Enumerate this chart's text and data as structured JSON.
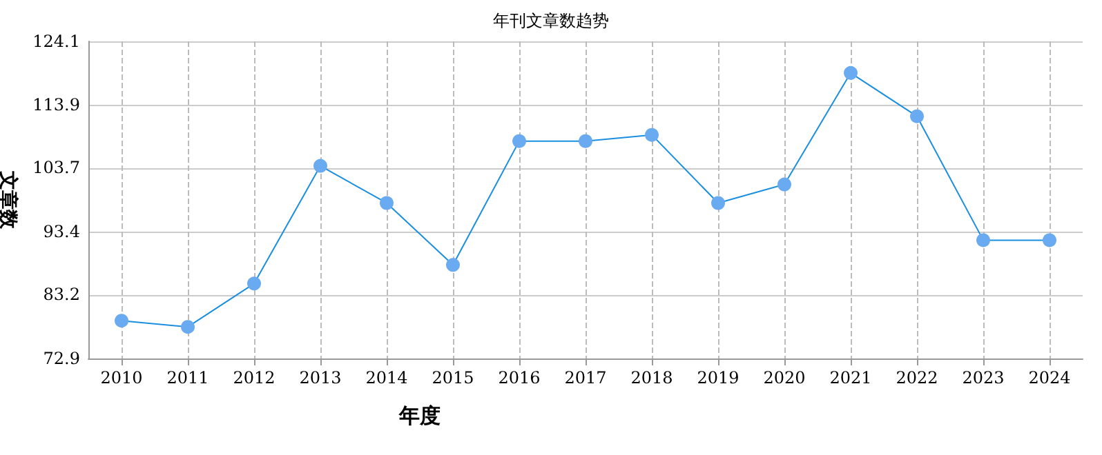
{
  "chart_data": {
    "type": "line",
    "title": "年刊文章数趋势",
    "xlabel": "年度",
    "ylabel": "文章数",
    "categories": [
      "2010",
      "2011",
      "2012",
      "2013",
      "2014",
      "2015",
      "2016",
      "2017",
      "2018",
      "2019",
      "2020",
      "2021",
      "2022",
      "2023",
      "2024"
    ],
    "series": [
      {
        "color": "#1a8fe0",
        "values": [
          79,
          78,
          85,
          104,
          98,
          88,
          108,
          108,
          109,
          98,
          101,
          119,
          112,
          92,
          92
        ]
      }
    ],
    "ylim": [
      72.9,
      124.1
    ],
    "yticks": [
      72.9,
      83.2,
      93.4,
      103.7,
      113.9,
      124.1
    ],
    "grid": true,
    "marker": "circle",
    "line_style": "solid"
  }
}
